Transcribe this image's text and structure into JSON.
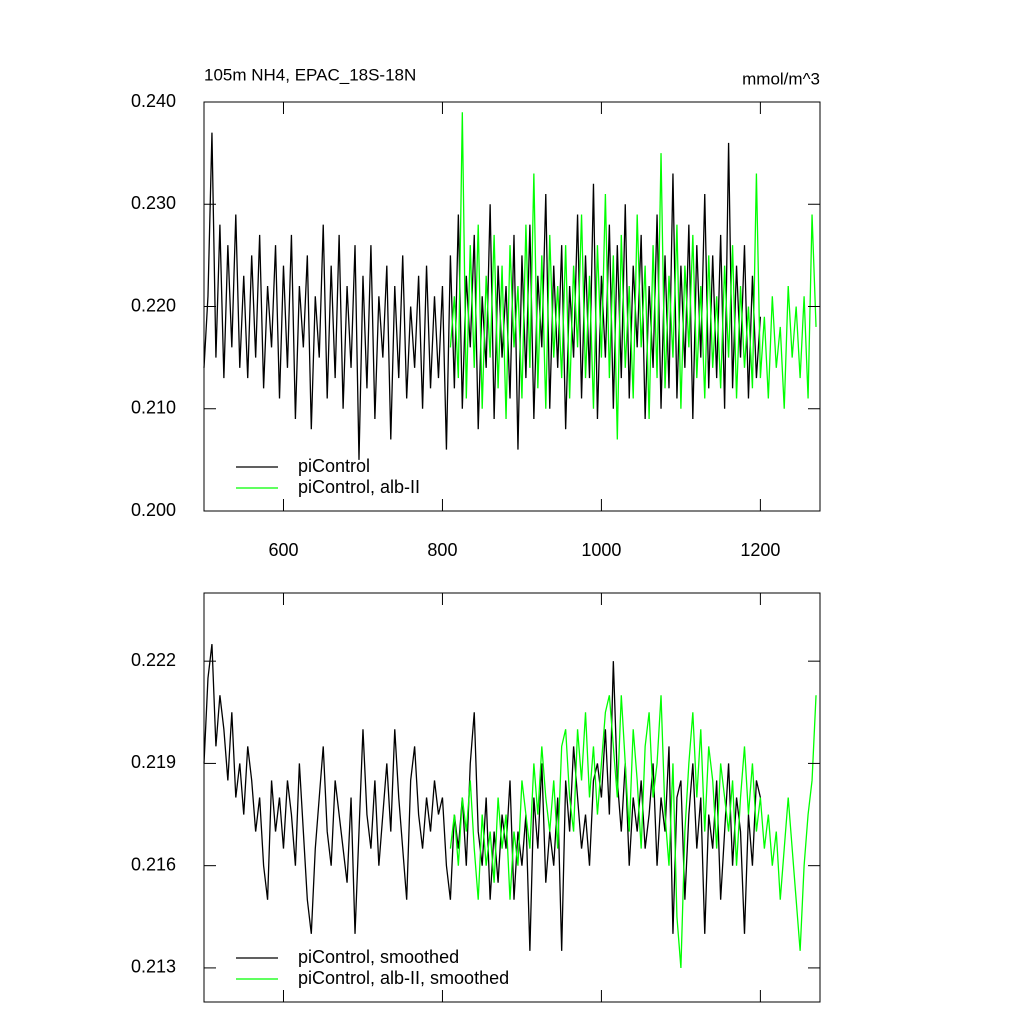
{
  "chart_data": [
    {
      "type": "line",
      "title": "105m NH4, EPAC_18S-18N",
      "units": "mmol/m^3",
      "x": [
        500,
        505,
        510,
        515,
        520,
        525,
        530,
        535,
        540,
        545,
        550,
        555,
        560,
        565,
        570,
        575,
        580,
        585,
        590,
        595,
        600,
        605,
        610,
        615,
        620,
        625,
        630,
        635,
        640,
        645,
        650,
        655,
        660,
        665,
        670,
        675,
        680,
        685,
        690,
        695,
        700,
        705,
        710,
        715,
        720,
        725,
        730,
        735,
        740,
        745,
        750,
        755,
        760,
        765,
        770,
        775,
        780,
        785,
        790,
        795,
        800,
        805,
        810,
        815,
        820,
        825,
        830,
        835,
        840,
        845,
        850,
        855,
        860,
        865,
        870,
        875,
        880,
        885,
        890,
        895,
        900,
        905,
        910,
        915,
        920,
        925,
        930,
        935,
        940,
        945,
        950,
        955,
        960,
        965,
        970,
        975,
        980,
        985,
        990,
        995,
        1000,
        1005,
        1010,
        1015,
        1020,
        1025,
        1030,
        1035,
        1040,
        1045,
        1050,
        1055,
        1060,
        1065,
        1070,
        1075,
        1080,
        1085,
        1090,
        1095,
        1100,
        1105,
        1110,
        1115,
        1120,
        1125,
        1130,
        1135,
        1140,
        1145,
        1150,
        1155,
        1160,
        1165,
        1170,
        1175,
        1180,
        1185,
        1190,
        1195,
        1200,
        1205,
        1210,
        1215,
        1220,
        1225,
        1230,
        1235,
        1240,
        1245,
        1250,
        1255,
        1260,
        1265,
        1270
      ],
      "series": [
        {
          "name": "piControl",
          "color": "#000000",
          "values": [
            0.214,
            0.221,
            0.237,
            0.215,
            0.228,
            0.213,
            0.226,
            0.216,
            0.229,
            0.214,
            0.223,
            0.213,
            0.225,
            0.215,
            0.227,
            0.212,
            0.222,
            0.216,
            0.226,
            0.211,
            0.224,
            0.214,
            0.227,
            0.209,
            0.222,
            0.216,
            0.225,
            0.208,
            0.221,
            0.215,
            0.228,
            0.211,
            0.224,
            0.213,
            0.227,
            0.21,
            0.222,
            0.214,
            0.226,
            0.205,
            0.223,
            0.212,
            0.226,
            0.209,
            0.221,
            0.215,
            0.224,
            0.207,
            0.222,
            0.213,
            0.225,
            0.211,
            0.22,
            0.214,
            0.223,
            0.21,
            0.224,
            0.212,
            0.221,
            0.213,
            0.222,
            0.206,
            0.225,
            0.212,
            0.229,
            0.21,
            0.223,
            0.216,
            0.227,
            0.208,
            0.221,
            0.214,
            0.23,
            0.209,
            0.224,
            0.215,
            0.222,
            0.211,
            0.227,
            0.206,
            0.225,
            0.213,
            0.228,
            0.209,
            0.223,
            0.216,
            0.231,
            0.21,
            0.224,
            0.214,
            0.226,
            0.208,
            0.222,
            0.215,
            0.229,
            0.211,
            0.225,
            0.213,
            0.232,
            0.209,
            0.223,
            0.215,
            0.228,
            0.21,
            0.226,
            0.213,
            0.23,
            0.211,
            0.224,
            0.216,
            0.227,
            0.209,
            0.222,
            0.214,
            0.229,
            0.21,
            0.225,
            0.212,
            0.233,
            0.211,
            0.224,
            0.214,
            0.228,
            0.209,
            0.226,
            0.215,
            0.231,
            0.212,
            0.225,
            0.213,
            0.227,
            0.21,
            0.236,
            0.212,
            0.224,
            0.215,
            0.226,
            0.211,
            0.223,
            0.213,
            0.219,
            null,
            null,
            null,
            null,
            null,
            null,
            null,
            null,
            null,
            null,
            null,
            null,
            null,
            null
          ]
        },
        {
          "name": "piControl, alb-II",
          "color": "#00ff00",
          "values": [
            null,
            null,
            null,
            null,
            null,
            null,
            null,
            null,
            null,
            null,
            null,
            null,
            null,
            null,
            null,
            null,
            null,
            null,
            null,
            null,
            null,
            null,
            null,
            null,
            null,
            null,
            null,
            null,
            null,
            null,
            null,
            null,
            null,
            null,
            null,
            null,
            null,
            null,
            null,
            null,
            null,
            null,
            null,
            null,
            null,
            null,
            null,
            null,
            null,
            null,
            null,
            null,
            null,
            null,
            null,
            null,
            null,
            null,
            null,
            null,
            null,
            null,
            0.216,
            0.221,
            0.213,
            0.239,
            0.211,
            0.226,
            0.214,
            0.228,
            0.21,
            0.223,
            0.215,
            0.227,
            0.212,
            0.224,
            0.209,
            0.226,
            0.216,
            0.222,
            0.211,
            0.228,
            0.214,
            0.233,
            0.212,
            0.225,
            0.21,
            0.227,
            0.215,
            0.222,
            0.213,
            0.226,
            0.211,
            0.224,
            0.216,
            0.229,
            0.213,
            0.223,
            0.21,
            0.226,
            0.215,
            0.231,
            0.213,
            0.225,
            0.207,
            0.227,
            0.214,
            0.222,
            0.211,
            0.229,
            0.216,
            0.224,
            0.209,
            0.226,
            0.213,
            0.235,
            0.212,
            0.223,
            0.215,
            0.228,
            0.21,
            0.224,
            0.216,
            0.227,
            0.213,
            0.222,
            0.211,
            0.225,
            0.214,
            0.221,
            0.212,
            0.224,
            0.215,
            0.226,
            0.211,
            0.222,
            0.214,
            0.22,
            0.212,
            0.233,
            0.213,
            0.219,
            0.211,
            0.221,
            0.214,
            0.218,
            0.21,
            0.222,
            0.215,
            0.22,
            0.213,
            0.221,
            0.211,
            0.229,
            0.218
          ]
        }
      ],
      "xlim": [
        500,
        1275
      ],
      "xticks": [
        600,
        800,
        1000,
        1200
      ],
      "show_xtick_labels": true,
      "ylim": [
        0.2,
        0.24
      ],
      "yticks": [
        {
          "value": 0.2,
          "label": "0.200"
        },
        {
          "value": 0.21,
          "label": "0.210"
        },
        {
          "value": 0.22,
          "label": "0.220"
        },
        {
          "value": 0.23,
          "label": "0.230"
        },
        {
          "value": 0.24,
          "label": "0.240"
        }
      ],
      "grid": false,
      "legend": "lower left"
    },
    {
      "type": "line",
      "x": [
        500,
        505,
        510,
        515,
        520,
        525,
        530,
        535,
        540,
        545,
        550,
        555,
        560,
        565,
        570,
        575,
        580,
        585,
        590,
        595,
        600,
        605,
        610,
        615,
        620,
        625,
        630,
        635,
        640,
        645,
        650,
        655,
        660,
        665,
        670,
        675,
        680,
        685,
        690,
        695,
        700,
        705,
        710,
        715,
        720,
        725,
        730,
        735,
        740,
        745,
        750,
        755,
        760,
        765,
        770,
        775,
        780,
        785,
        790,
        795,
        800,
        805,
        810,
        815,
        820,
        825,
        830,
        835,
        840,
        845,
        850,
        855,
        860,
        865,
        870,
        875,
        880,
        885,
        890,
        895,
        900,
        905,
        910,
        915,
        920,
        925,
        930,
        935,
        940,
        945,
        950,
        955,
        960,
        965,
        970,
        975,
        980,
        985,
        990,
        995,
        1000,
        1005,
        1010,
        1015,
        1020,
        1025,
        1030,
        1035,
        1040,
        1045,
        1050,
        1055,
        1060,
        1065,
        1070,
        1075,
        1080,
        1085,
        1090,
        1095,
        1100,
        1105,
        1110,
        1115,
        1120,
        1125,
        1130,
        1135,
        1140,
        1145,
        1150,
        1155,
        1160,
        1165,
        1170,
        1175,
        1180,
        1185,
        1190,
        1195,
        1200,
        1205,
        1210,
        1215,
        1220,
        1225,
        1230,
        1235,
        1240,
        1245,
        1250,
        1255,
        1260,
        1265,
        1270
      ],
      "series": [
        {
          "name": "piControl, smoothed",
          "color": "#000000",
          "values": [
            0.219,
            0.2215,
            0.2225,
            0.2195,
            0.221,
            0.22,
            0.2185,
            0.2205,
            0.218,
            0.219,
            0.2175,
            0.2195,
            0.2185,
            0.217,
            0.218,
            0.216,
            0.215,
            0.2185,
            0.217,
            0.218,
            0.2165,
            0.2185,
            0.2175,
            0.216,
            0.219,
            0.217,
            0.215,
            0.214,
            0.2165,
            0.218,
            0.2195,
            0.217,
            0.216,
            0.2185,
            0.2175,
            0.2165,
            0.2155,
            0.218,
            0.214,
            0.217,
            0.22,
            0.2175,
            0.2165,
            0.2185,
            0.216,
            0.2175,
            0.219,
            0.217,
            0.22,
            0.218,
            0.2165,
            0.215,
            0.2185,
            0.2195,
            0.2175,
            0.2165,
            0.218,
            0.217,
            0.2185,
            0.2175,
            0.218,
            0.216,
            0.215,
            0.2175,
            0.2165,
            0.218,
            0.216,
            0.219,
            0.2205,
            0.217,
            0.216,
            0.218,
            0.215,
            0.217,
            0.2155,
            0.2175,
            0.2165,
            0.2185,
            0.215,
            0.217,
            0.216,
            0.2175,
            0.2135,
            0.218,
            0.2165,
            0.219,
            0.2155,
            0.217,
            0.216,
            0.218,
            0.2135,
            0.2185,
            0.217,
            0.2195,
            0.218,
            0.2165,
            0.2175,
            0.216,
            0.2185,
            0.219,
            0.218,
            0.22,
            0.2175,
            0.222,
            0.2185,
            0.217,
            0.219,
            0.216,
            0.218,
            0.217,
            0.2185,
            0.2165,
            0.2175,
            0.219,
            0.216,
            0.218,
            0.217,
            0.2195,
            0.214,
            0.218,
            0.2185,
            0.215,
            0.2175,
            0.219,
            0.2165,
            0.218,
            0.214,
            0.2175,
            0.2165,
            0.2185,
            0.215,
            0.217,
            0.219,
            0.216,
            0.218,
            0.217,
            0.214,
            0.2175,
            0.216,
            0.2185,
            0.218,
            null,
            null,
            null,
            null,
            null,
            null,
            null,
            null,
            null,
            null,
            null,
            null,
            null,
            null
          ]
        },
        {
          "name": "piControl, alb-II, smoothed",
          "color": "#00ff00",
          "values": [
            null,
            null,
            null,
            null,
            null,
            null,
            null,
            null,
            null,
            null,
            null,
            null,
            null,
            null,
            null,
            null,
            null,
            null,
            null,
            null,
            null,
            null,
            null,
            null,
            null,
            null,
            null,
            null,
            null,
            null,
            null,
            null,
            null,
            null,
            null,
            null,
            null,
            null,
            null,
            null,
            null,
            null,
            null,
            null,
            null,
            null,
            null,
            null,
            null,
            null,
            null,
            null,
            null,
            null,
            null,
            null,
            null,
            null,
            null,
            null,
            null,
            null,
            0.2165,
            0.2175,
            0.216,
            0.218,
            0.217,
            0.2185,
            0.2165,
            0.215,
            0.2175,
            0.216,
            0.217,
            0.2155,
            0.218,
            0.2165,
            0.2175,
            0.215,
            0.217,
            0.216,
            0.2185,
            0.2175,
            0.2165,
            0.219,
            0.2175,
            0.2195,
            0.218,
            0.217,
            0.2185,
            0.2165,
            0.2195,
            0.22,
            0.218,
            0.217,
            0.22,
            0.2185,
            0.2205,
            0.218,
            0.2195,
            0.2175,
            0.219,
            0.2205,
            0.221,
            0.2195,
            0.218,
            0.221,
            0.219,
            0.217,
            0.22,
            0.2185,
            0.2165,
            0.2195,
            0.2205,
            0.218,
            0.219,
            0.221,
            0.2175,
            0.216,
            0.219,
            0.2145,
            0.213,
            0.217,
            0.219,
            0.2205,
            0.218,
            0.22,
            0.217,
            0.2195,
            0.2185,
            0.2165,
            0.219,
            0.218,
            0.217,
            0.2185,
            0.216,
            0.218,
            0.2195,
            0.2175,
            0.219,
            0.217,
            0.218,
            0.2165,
            0.2175,
            0.216,
            0.217,
            0.215,
            0.2165,
            0.218,
            0.2165,
            0.215,
            0.2135,
            0.216,
            0.2175,
            0.2185,
            0.221
          ]
        }
      ],
      "xlim": [
        500,
        1275
      ],
      "xticks": [
        600,
        800,
        1000,
        1200
      ],
      "show_xtick_labels": false,
      "ylim": [
        0.212,
        0.224
      ],
      "yticks": [
        0.213,
        0.216,
        0.219,
        0.222
      ],
      "grid": false,
      "legend": "lower left"
    }
  ]
}
